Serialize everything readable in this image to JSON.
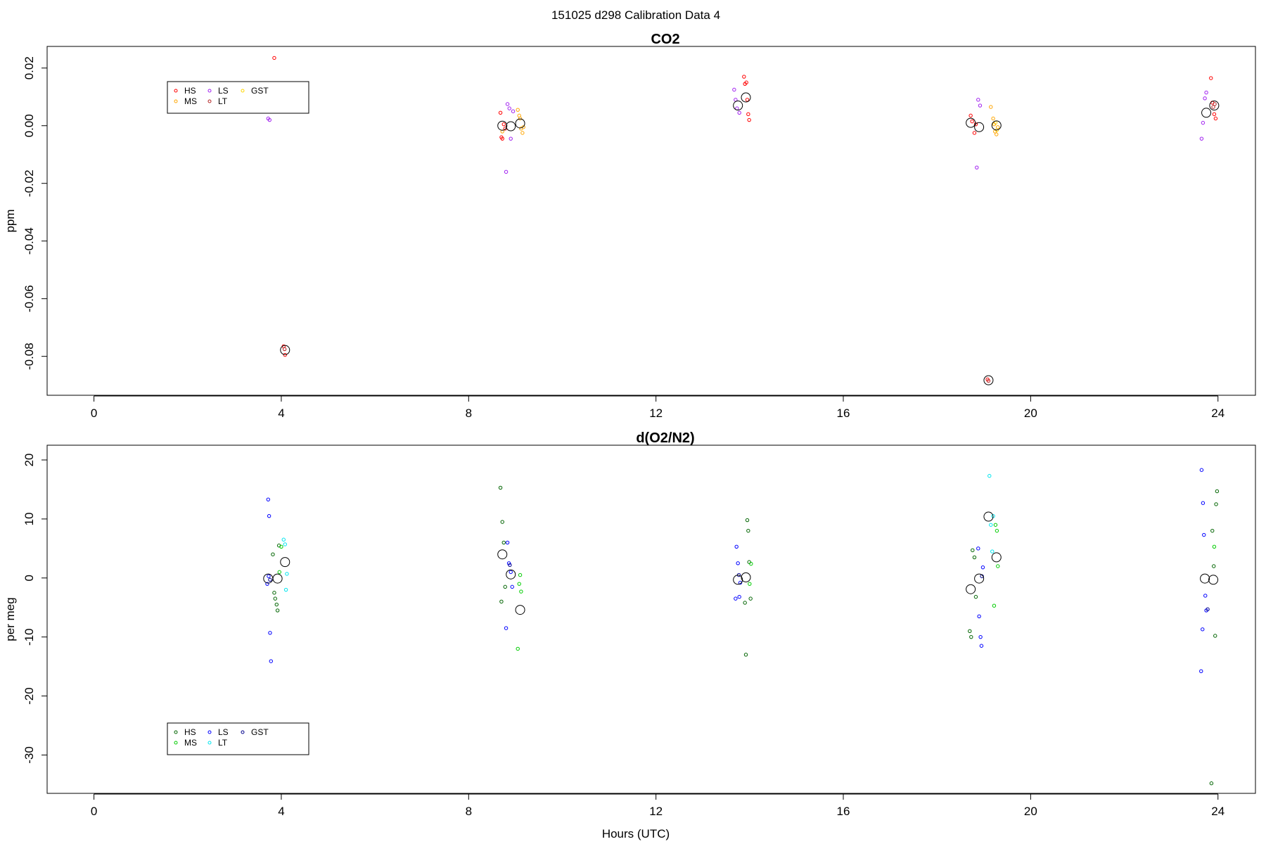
{
  "figure": {
    "title": "151025   d298   Calibration Data 4",
    "xlabel": "Hours (UTC)"
  },
  "chart_data": [
    {
      "type": "scatter",
      "title": "CO2",
      "xlabel": "",
      "ylabel": "ppm",
      "xlim": [
        -1.0,
        24.8
      ],
      "ylim": [
        -0.0935,
        0.0275
      ],
      "xticks": [
        0,
        4,
        8,
        12,
        16,
        20,
        24
      ],
      "yticks": [
        -0.08,
        -0.06,
        -0.04,
        -0.02,
        0.0,
        0.02
      ],
      "ytick_labels": [
        "-0.08",
        "-0.06",
        "-0.04",
        "-0.02",
        "0.00",
        "0.02"
      ],
      "grid": false,
      "legend_position": "top-left",
      "legend": [
        {
          "name": "HS",
          "color": "#ff0000"
        },
        {
          "name": "LS",
          "color": "#a020f0"
        },
        {
          "name": "GST",
          "color": "#ffd700"
        },
        {
          "name": "MS",
          "color": "#ffa500"
        },
        {
          "name": "LT",
          "color": "#b22222"
        }
      ],
      "series": [
        {
          "name": "HS",
          "color": "#ff0000",
          "points": [
            [
              3.85,
              0.0235
            ],
            [
              4.05,
              -0.0765
            ],
            [
              4.08,
              -0.0795
            ],
            [
              8.68,
              0.0045
            ],
            [
              8.7,
              -0.004
            ],
            [
              8.72,
              -0.0045
            ],
            [
              8.75,
              0.0005
            ],
            [
              8.78,
              -0.001
            ],
            [
              13.88,
              0.017
            ],
            [
              13.9,
              0.0145
            ],
            [
              13.93,
              0.015
            ],
            [
              13.95,
              0.009
            ],
            [
              13.97,
              0.004
            ],
            [
              13.99,
              0.002
            ],
            [
              18.72,
              0.0035
            ],
            [
              18.75,
              0.0015
            ],
            [
              18.8,
              -0.0025
            ],
            [
              18.83,
              0.0005
            ],
            [
              19.08,
              -0.088
            ],
            [
              23.85,
              0.0165
            ],
            [
              23.88,
              0.008
            ],
            [
              23.92,
              0.004
            ],
            [
              23.95,
              0.0025
            ]
          ]
        },
        {
          "name": "LS",
          "color": "#a020f0",
          "points": [
            [
              3.72,
              0.0025
            ],
            [
              3.75,
              0.002
            ],
            [
              8.8,
              -0.016
            ],
            [
              8.83,
              0.0075
            ],
            [
              8.87,
              0.006
            ],
            [
              8.9,
              -0.0045
            ],
            [
              8.95,
              0.005
            ],
            [
              13.67,
              0.0125
            ],
            [
              13.7,
              0.009
            ],
            [
              13.73,
              0.006
            ],
            [
              13.78,
              0.0045
            ],
            [
              18.85,
              -0.0145
            ],
            [
              18.88,
              0.009
            ],
            [
              18.92,
              0.007
            ],
            [
              23.65,
              -0.0045
            ],
            [
              23.68,
              0.001
            ],
            [
              23.72,
              0.0095
            ],
            [
              23.75,
              0.0115
            ]
          ]
        },
        {
          "name": "GST",
          "color": "#ffd700",
          "points": [
            [
              19.25,
              0.001
            ],
            [
              19.28,
              -0.0015
            ]
          ]
        },
        {
          "name": "MS",
          "color": "#ffa500",
          "points": [
            [
              8.72,
              -0.002
            ],
            [
              9.05,
              0.0055
            ],
            [
              9.08,
              0.0035
            ],
            [
              9.1,
              0.0025
            ],
            [
              9.12,
              -0.001
            ],
            [
              9.15,
              -0.0025
            ],
            [
              9.17,
              -0.0005
            ],
            [
              19.15,
              0.0065
            ],
            [
              19.2,
              0.0025
            ],
            [
              19.22,
              0.0005
            ],
            [
              19.24,
              -0.002
            ],
            [
              19.27,
              -0.003
            ],
            [
              19.3,
              -0.0005
            ]
          ]
        },
        {
          "name": "LT",
          "color": "#b22222",
          "points": [
            [
              4.07,
              -0.0775
            ],
            [
              19.1,
              -0.0885
            ],
            [
              23.9,
              0.0065
            ],
            [
              23.93,
              0.0075
            ]
          ]
        }
      ],
      "means": [
        [
          4.08,
          -0.0778
        ],
        [
          8.72,
          0.0
        ],
        [
          8.9,
          -0.0002
        ],
        [
          9.1,
          0.0008
        ],
        [
          13.75,
          0.007
        ],
        [
          13.92,
          0.0098
        ],
        [
          18.72,
          0.001
        ],
        [
          18.9,
          -0.0005
        ],
        [
          19.1,
          -0.0883
        ],
        [
          19.27,
          0.0001
        ],
        [
          23.75,
          0.0045
        ],
        [
          23.92,
          0.007
        ]
      ]
    },
    {
      "type": "scatter",
      "title": "d(O2/N2)",
      "xlabel": "Hours (UTC)",
      "ylabel": "per meg",
      "xlim": [
        -1.0,
        24.8
      ],
      "ylim": [
        -36.5,
        22.5
      ],
      "xticks": [
        0,
        4,
        8,
        12,
        16,
        20,
        24
      ],
      "yticks": [
        -30,
        -20,
        -10,
        0,
        10,
        20
      ],
      "ytick_labels": [
        "-30",
        "-20",
        "-10",
        "0",
        "10",
        "20"
      ],
      "grid": false,
      "legend_position": "bottom-left",
      "legend": [
        {
          "name": "HS",
          "color": "#006400"
        },
        {
          "name": "LS",
          "color": "#0000ff"
        },
        {
          "name": "GST",
          "color": "#00008b"
        },
        {
          "name": "MS",
          "color": "#00cc00"
        },
        {
          "name": "LT",
          "color": "#00e5ee"
        }
      ],
      "series": [
        {
          "name": "HS",
          "color": "#006400",
          "points": [
            [
              3.82,
              4.0
            ],
            [
              3.85,
              -2.5
            ],
            [
              3.87,
              -3.5
            ],
            [
              3.9,
              -4.5
            ],
            [
              3.92,
              -5.5
            ],
            [
              3.95,
              5.5
            ],
            [
              8.68,
              15.3
            ],
            [
              8.72,
              9.5
            ],
            [
              8.75,
              6.0
            ],
            [
              8.78,
              -1.5
            ],
            [
              8.7,
              -4.0
            ],
            [
              13.92,
              -13.0
            ],
            [
              13.95,
              9.8
            ],
            [
              13.97,
              8.0
            ],
            [
              13.99,
              2.7
            ],
            [
              14.02,
              -3.5
            ],
            [
              13.9,
              -4.2
            ],
            [
              18.7,
              -9.0
            ],
            [
              18.73,
              -10.0
            ],
            [
              18.76,
              4.7
            ],
            [
              18.8,
              3.5
            ],
            [
              18.83,
              -3.2
            ],
            [
              23.88,
              8.0
            ],
            [
              23.91,
              2.0
            ],
            [
              23.94,
              -9.8
            ],
            [
              23.96,
              12.5
            ],
            [
              23.98,
              14.7
            ],
            [
              23.86,
              -34.8
            ]
          ]
        },
        {
          "name": "LS",
          "color": "#0000ff",
          "points": [
            [
              3.72,
              13.3
            ],
            [
              3.74,
              10.5
            ],
            [
              3.76,
              -9.3
            ],
            [
              3.78,
              -14.1
            ],
            [
              3.7,
              -1.0
            ],
            [
              3.73,
              0.3
            ],
            [
              8.8,
              -8.5
            ],
            [
              8.83,
              6.0
            ],
            [
              8.86,
              2.5
            ],
            [
              8.9,
              1.0
            ],
            [
              8.93,
              -1.5
            ],
            [
              13.72,
              5.3
            ],
            [
              13.75,
              2.5
            ],
            [
              13.78,
              -3.2
            ],
            [
              13.7,
              -3.5
            ],
            [
              13.8,
              -0.8
            ],
            [
              18.88,
              5.0
            ],
            [
              18.9,
              -6.5
            ],
            [
              18.93,
              -10.0
            ],
            [
              18.95,
              -11.5
            ],
            [
              18.98,
              1.8
            ],
            [
              23.65,
              18.3
            ],
            [
              23.68,
              12.7
            ],
            [
              23.7,
              7.3
            ],
            [
              23.73,
              -3.0
            ],
            [
              23.75,
              -5.5
            ],
            [
              23.67,
              -8.7
            ],
            [
              23.64,
              -15.8
            ]
          ]
        },
        {
          "name": "GST",
          "color": "#00008b",
          "points": [
            [
              3.76,
              -0.3
            ],
            [
              8.88,
              2.2
            ],
            [
              13.77,
              0.5
            ],
            [
              18.96,
              0.3
            ],
            [
              23.78,
              -5.3
            ]
          ]
        },
        {
          "name": "MS",
          "color": "#00cc00",
          "points": [
            [
              3.96,
              1.0
            ],
            [
              4.0,
              5.3
            ],
            [
              9.05,
              -12.0
            ],
            [
              9.08,
              -1.0
            ],
            [
              9.12,
              -2.3
            ],
            [
              9.1,
              0.5
            ],
            [
              14.0,
              -1.0
            ],
            [
              14.03,
              2.4
            ],
            [
              19.25,
              9.0
            ],
            [
              19.28,
              8.0
            ],
            [
              19.22,
              -4.7
            ],
            [
              19.3,
              2.0
            ],
            [
              23.92,
              5.3
            ]
          ]
        },
        {
          "name": "LT",
          "color": "#00e5ee",
          "points": [
            [
              4.05,
              6.5
            ],
            [
              4.08,
              5.7
            ],
            [
              4.1,
              -2.0
            ],
            [
              4.12,
              0.7
            ],
            [
              19.12,
              17.3
            ],
            [
              19.15,
              9.0
            ],
            [
              19.18,
              4.5
            ],
            [
              19.2,
              10.5
            ]
          ]
        }
      ],
      "means": [
        [
          3.72,
          -0.1
        ],
        [
          3.92,
          -0.1
        ],
        [
          4.08,
          2.7
        ],
        [
          8.72,
          4.0
        ],
        [
          8.9,
          0.6
        ],
        [
          9.1,
          -5.4
        ],
        [
          13.75,
          -0.3
        ],
        [
          13.92,
          0.1
        ],
        [
          18.72,
          -1.9
        ],
        [
          18.9,
          -0.1
        ],
        [
          19.1,
          10.4
        ],
        [
          19.27,
          3.5
        ],
        [
          23.72,
          -0.1
        ],
        [
          23.9,
          -0.3
        ]
      ]
    }
  ]
}
